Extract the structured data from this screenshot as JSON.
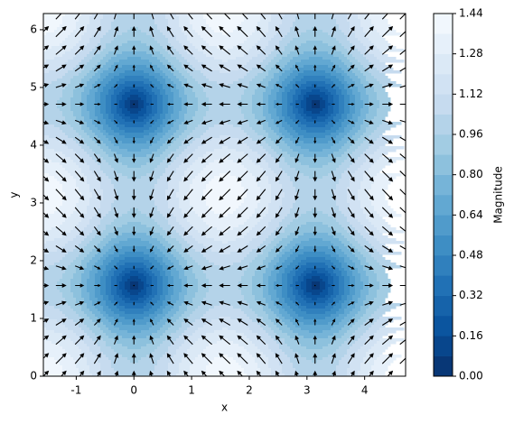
{
  "chart_data": {
    "type": "contour_quiver",
    "xlabel": "x",
    "ylabel": "y",
    "colorbar_label": "Magnitude",
    "xlim": [
      -1.57,
      4.71
    ],
    "ylim": [
      0,
      6.28
    ],
    "xticks": [
      -1,
      0,
      1,
      2,
      3,
      4
    ],
    "yticks": [
      0,
      1,
      2,
      3,
      4,
      5,
      6
    ],
    "levels": [
      0,
      0.08,
      0.16,
      0.24,
      0.32,
      0.4,
      0.48,
      0.56,
      0.64,
      0.72,
      0.8,
      0.88,
      0.96,
      1.04,
      1.12,
      1.2,
      1.28,
      1.36,
      1.44
    ],
    "colorbar_ticks": [
      {
        "value": 0,
        "label": "0.00"
      },
      {
        "value": 0.16,
        "label": "0.16"
      },
      {
        "value": 0.32,
        "label": "0.32"
      },
      {
        "value": 0.48,
        "label": "0.48"
      },
      {
        "value": 0.64,
        "label": "0.64"
      },
      {
        "value": 0.8,
        "label": "0.80"
      },
      {
        "value": 0.96,
        "label": "0.96"
      },
      {
        "value": 1.12,
        "label": "1.12"
      },
      {
        "value": 1.28,
        "label": "1.28"
      },
      {
        "value": 1.44,
        "label": "1.44"
      }
    ],
    "colors": [
      "#08306b",
      "#08519c",
      "#2171b5",
      "#4292c6",
      "#6baed6",
      "#9ecae1",
      "#c6dbef",
      "#deebf7",
      "#f7fbff"
    ],
    "arrow_color": "#000000",
    "quiver": {
      "x": [
        -1.57,
        -1.26,
        -0.94,
        -0.63,
        -0.31,
        0,
        0.31,
        0.63,
        0.94,
        1.26,
        1.57,
        1.88,
        2.2,
        2.51,
        2.83,
        3.14,
        3.46,
        3.77,
        4.08,
        4.4,
        4.71
      ],
      "y": [
        0,
        0.31,
        0.63,
        0.94,
        1.26,
        1.57,
        1.88,
        2.2,
        2.51,
        2.83,
        3.14,
        3.46,
        3.77,
        4.08,
        4.4,
        4.71,
        5.03,
        5.34,
        5.65,
        5.97,
        6.28
      ],
      "u": [
        1,
        0.95,
        0.81,
        0.59,
        0.31,
        0,
        -0.31,
        -0.59,
        -0.81,
        -0.95,
        -1,
        -0.95,
        -0.81,
        -0.59,
        -0.31,
        0,
        0.31,
        0.59,
        0.81,
        0.95,
        1
      ],
      "v": [
        1,
        0.95,
        0.81,
        0.59,
        0.31,
        0,
        -0.31,
        -0.59,
        -0.81,
        -0.95,
        -1,
        -0.95,
        -0.81,
        -0.59,
        -0.31,
        0,
        0.31,
        0.59,
        0.81,
        0.95,
        1
      ]
    }
  }
}
